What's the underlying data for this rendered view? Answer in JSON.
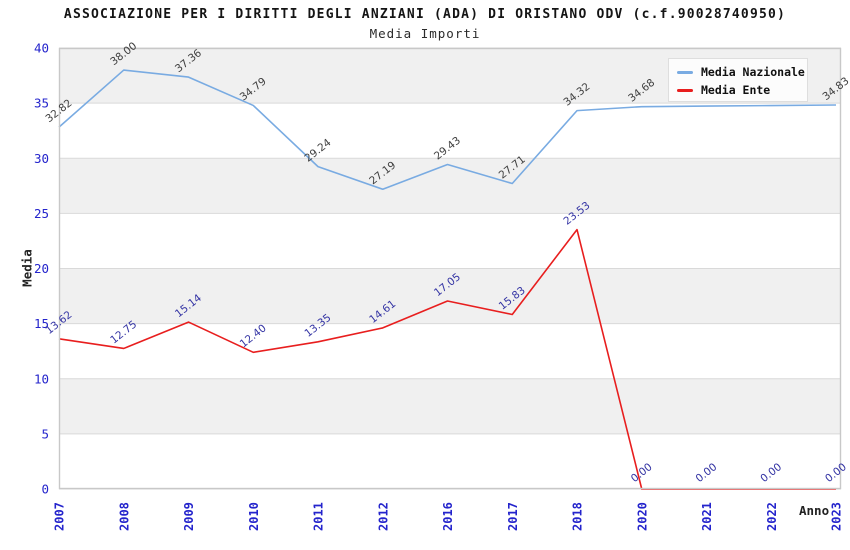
{
  "header": {
    "title": "ASSOCIAZIONE PER I DIRITTI DEGLI ANZIANI (ADA) DI ORISTANO ODV (c.f.90028740950)",
    "subtitle": "Media Importi"
  },
  "legend": {
    "items": [
      {
        "label": "Media Nazionale",
        "color": "#79abe2"
      },
      {
        "label": "Media Ente",
        "color": "#e81e1e"
      }
    ]
  },
  "axes": {
    "y_title": "Media",
    "x_title": "Anno",
    "y_ticks": [
      0,
      5,
      10,
      15,
      20,
      25,
      30,
      35,
      40
    ],
    "x_ticks": [
      "2007",
      "2008",
      "2009",
      "2010",
      "2011",
      "2012",
      "2016",
      "2017",
      "2018",
      "2020",
      "2021",
      "2022",
      "2023"
    ],
    "tick_color": "#2424cc"
  },
  "chart_data": {
    "type": "line",
    "title": "Media Importi",
    "xlabel": "Anno",
    "ylabel": "Media",
    "ylim": [
      0,
      40
    ],
    "grid": true,
    "legend_position": "top-right",
    "band_color": "#f0f0f0",
    "banded_intervals": [
      [
        5,
        10
      ],
      [
        15,
        20
      ],
      [
        25,
        30
      ],
      [
        35,
        40
      ]
    ],
    "categories": [
      "2007",
      "2008",
      "2009",
      "2010",
      "2011",
      "2012",
      "2016",
      "2017",
      "2018",
      "2020",
      "2021",
      "2022",
      "2023"
    ],
    "series": [
      {
        "name": "Media Nazionale",
        "color": "#79abe2",
        "label_color": "#3f3f3f",
        "values": [
          32.82,
          38.0,
          37.36,
          34.79,
          29.24,
          27.19,
          29.43,
          27.71,
          34.32,
          34.68,
          34.73,
          34.78,
          34.83
        ],
        "labels": [
          "32.82",
          "38.00",
          "37.36",
          "34.79",
          "29.24",
          "27.19",
          "29.43",
          "27.71",
          "34.32",
          "34.68",
          null,
          null,
          "34.83"
        ]
      },
      {
        "name": "Media Ente",
        "color": "#e81e1e",
        "label_color": "#3434a4",
        "values": [
          13.62,
          12.75,
          15.14,
          12.4,
          13.35,
          14.61,
          17.05,
          15.83,
          23.53,
          0.0,
          0.0,
          0.0,
          0.0
        ],
        "labels": [
          "13.62",
          "12.75",
          "15.14",
          "12.40",
          "13.35",
          "14.61",
          "17.05",
          "15.83",
          "23.53",
          "0.00",
          "0.00",
          "0.00",
          "0.00"
        ]
      }
    ]
  }
}
